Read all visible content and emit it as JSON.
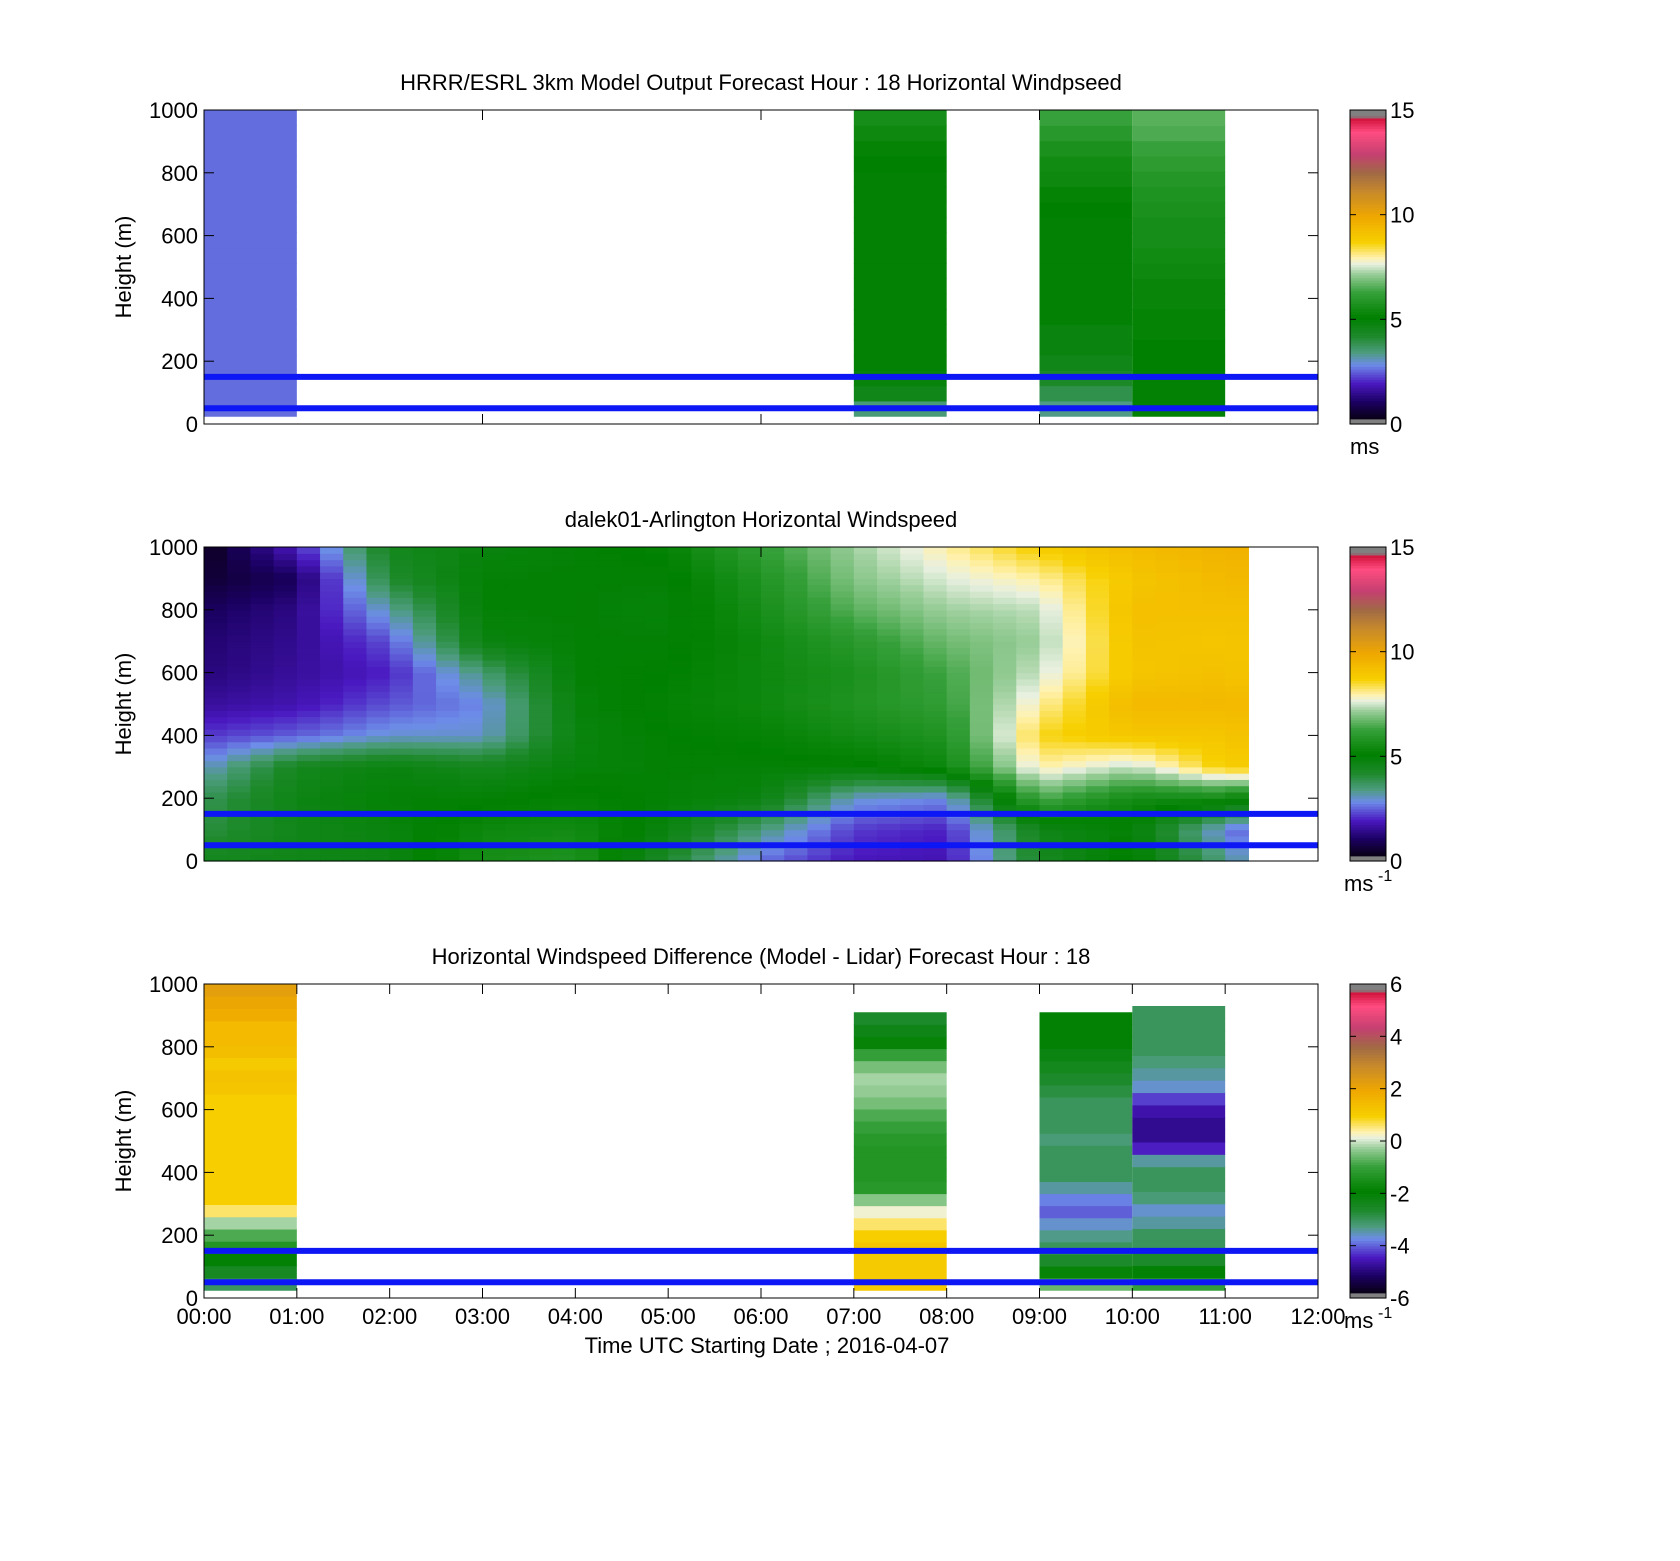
{
  "chart_data": [
    {
      "type": "heatmap",
      "title": "HRRR/ESRL 3km Model Output   Forecast Hour : 18 Horizontal Windpseed",
      "ylabel": "Height (m)",
      "xlabel": "",
      "yticks": [
        "0",
        "200",
        "400",
        "600",
        "800",
        "1000"
      ],
      "ylim": [
        0,
        1000
      ],
      "xlim_hours": [
        0,
        12
      ],
      "colorbar": {
        "ticks": [
          "0",
          "5",
          "10",
          "15"
        ],
        "range": [
          0,
          15
        ],
        "unit": "ms"
      },
      "reference_lines_m": [
        150,
        50
      ],
      "columns": [
        {
          "start_h": 0,
          "end_h": 1,
          "bottom": 25,
          "top": 1000,
          "profile": [
            2.6,
            2.6,
            2.6,
            2.6,
            2.6,
            2.6,
            2.6,
            2.6,
            2.6,
            2.6,
            2.6,
            2.6,
            2.6,
            2.6,
            2.6,
            2.6,
            2.6,
            2.6,
            2.6,
            2.6
          ]
        },
        {
          "start_h": 7,
          "end_h": 8,
          "bottom": 25,
          "top": 1000,
          "profile": [
            3.5,
            4.6,
            4.9,
            5.0,
            5.0,
            5.0,
            5.0,
            5.0,
            5.0,
            5.0,
            5.0,
            5.0,
            5.0,
            5.0,
            5.0,
            5.0,
            5.1,
            5.2,
            5.4,
            5.6
          ]
        },
        {
          "start_h": 9,
          "end_h": 10,
          "bottom": 25,
          "top": 1000,
          "profile": [
            3.4,
            3.9,
            4.3,
            4.6,
            4.8,
            4.8,
            5.0,
            5.0,
            5.0,
            5.0,
            5.0,
            5.0,
            5.0,
            5.1,
            5.2,
            5.4,
            5.5,
            5.7,
            6.0,
            6.3
          ]
        },
        {
          "start_h": 10,
          "end_h": 11,
          "bottom": 25,
          "top": 1000,
          "profile": [
            5.0,
            5.0,
            5.0,
            5.1,
            5.1,
            5.2,
            5.2,
            5.3,
            5.3,
            5.4,
            5.5,
            5.6,
            5.6,
            5.7,
            5.8,
            5.9,
            6.1,
            6.3,
            6.5,
            6.6
          ]
        }
      ]
    },
    {
      "type": "heatmap",
      "title": "dalek01-Arlington  Horizontal Windspeed",
      "ylabel": "Height (m)",
      "xlabel": "",
      "yticks": [
        "0",
        "200",
        "400",
        "600",
        "800",
        "1000"
      ],
      "ylim": [
        0,
        1000
      ],
      "xlim_hours": [
        0,
        12
      ],
      "colorbar": {
        "ticks": [
          "0",
          "5",
          "10",
          "15"
        ],
        "range": [
          0,
          15
        ],
        "unit": "ms",
        "unit_exp": "-1"
      },
      "reference_lines_m": [
        150,
        50
      ],
      "grid": {
        "time_start_h": 0,
        "time_end_h": 11.25,
        "time_step_h": 0.25,
        "height_levels_m": [
          0,
          100,
          200,
          300,
          400,
          500,
          600,
          700,
          800,
          900,
          1000
        ],
        "note_values": "windspeed in m/s interpolated between listed levels",
        "anchor_times_h": [
          0,
          1,
          2,
          3,
          4,
          5,
          6,
          7,
          8,
          9,
          10,
          11,
          11.25
        ],
        "anchor_profiles": [
          [
            4.5,
            4.0,
            3.8,
            3.0,
            2.2,
            1.6,
            1.3,
            1.2,
            1.0,
            0.6,
            0.3
          ],
          [
            4.6,
            4.6,
            4.7,
            4.5,
            2.5,
            1.8,
            1.6,
            1.5,
            1.4,
            1.0,
            2.0
          ],
          [
            4.7,
            4.8,
            5.0,
            4.8,
            3.0,
            2.4,
            2.0,
            2.4,
            3.2,
            4.2,
            4.5
          ],
          [
            5.6,
            5.4,
            5.0,
            4.5,
            3.0,
            2.8,
            3.5,
            4.8,
            5.0,
            5.0,
            4.8
          ],
          [
            5.8,
            5.5,
            5.2,
            4.9,
            4.8,
            4.9,
            5.0,
            5.0,
            5.0,
            5.0,
            5.0
          ],
          [
            4.2,
            4.8,
            5.0,
            5.0,
            5.1,
            5.2,
            5.1,
            5.0,
            4.9,
            5.0,
            5.2
          ],
          [
            2.6,
            3.5,
            4.8,
            5.0,
            5.2,
            5.4,
            5.4,
            5.4,
            5.6,
            5.8,
            6.2
          ],
          [
            1.9,
            2.2,
            3.0,
            5.0,
            5.5,
            5.8,
            5.7,
            6.0,
            6.6,
            7.0,
            7.2
          ],
          [
            1.8,
            2.0,
            2.8,
            5.4,
            5.8,
            6.2,
            6.4,
            6.8,
            7.2,
            7.6,
            8.0
          ],
          [
            4.4,
            4.6,
            6.5,
            8.0,
            8.6,
            8.0,
            7.5,
            7.2,
            7.4,
            8.0,
            8.8
          ],
          [
            5.2,
            5.0,
            5.5,
            7.4,
            9.0,
            9.4,
            9.0,
            9.1,
            9.2,
            9.0,
            9.3
          ],
          [
            3.4,
            2.8,
            5.5,
            8.8,
            9.0,
            9.4,
            9.2,
            9.0,
            9.2,
            9.4,
            9.6
          ],
          [
            3.0,
            2.4,
            5.0,
            8.8,
            9.2,
            9.4,
            9.0,
            9.1,
            9.2,
            9.4,
            9.6
          ]
        ]
      }
    },
    {
      "type": "heatmap",
      "title": "Horizontal Windspeed Difference (Model - Lidar) Forecast Hour : 18",
      "ylabel": "Height (m)",
      "xlabel": "Time UTC  Starting Date ; 2016-04-07",
      "xticks": [
        "00:00",
        "01:00",
        "02:00",
        "03:00",
        "04:00",
        "05:00",
        "06:00",
        "07:00",
        "08:00",
        "09:00",
        "10:00",
        "11:00",
        "12:00"
      ],
      "yticks": [
        "0",
        "200",
        "400",
        "600",
        "800",
        "1000"
      ],
      "ylim": [
        0,
        1000
      ],
      "xlim_hours": [
        0,
        12
      ],
      "colorbar": {
        "ticks": [
          "-6",
          "-4",
          "-2",
          "0",
          "2",
          "4",
          "6"
        ],
        "range": [
          -6,
          6
        ],
        "unit": "ms",
        "unit_exp": "-1"
      },
      "reference_lines_m": [
        150,
        50
      ],
      "columns": [
        {
          "start_h": 0,
          "end_h": 1,
          "bottom": 25,
          "top": 1000,
          "profile": [
            -3.0,
            -2.5,
            -2.0,
            -1.3,
            -0.8,
            -0.2,
            0.6,
            1.0,
            1.0,
            1.0,
            1.0,
            1.0,
            1.0,
            1.0,
            1.0,
            1.0,
            1.2,
            1.3,
            1.1,
            1.4,
            1.5,
            1.5,
            1.8,
            2.0,
            2.2
          ]
        },
        {
          "start_h": 7,
          "end_h": 8,
          "bottom": 25,
          "top": 910,
          "profile": [
            1.1,
            1.1,
            1.1,
            1.2,
            1.0,
            0.6,
            0.2,
            -0.4,
            -1.2,
            -1.3,
            -1.3,
            -1.3,
            -1.2,
            -1.0,
            -0.8,
            -0.5,
            -0.3,
            -0.2,
            -0.5,
            -1.0,
            -1.8,
            -2.3,
            -2.6
          ]
        },
        {
          "start_h": 9,
          "end_h": 10,
          "bottom": 25,
          "top": 910,
          "profile": [
            -0.6,
            -1.8,
            -2.6,
            -3.0,
            -3.3,
            -3.6,
            -4.0,
            -3.8,
            -3.4,
            -3.0,
            -3.0,
            -3.0,
            -3.2,
            -3.0,
            -3.0,
            -3.0,
            -2.8,
            -2.6,
            -2.4,
            -2.2,
            -2.0,
            -2.0,
            -2.0
          ]
        },
        {
          "start_h": 10,
          "end_h": 11,
          "bottom": 25,
          "top": 930,
          "profile": [
            -1.0,
            -2.0,
            -2.6,
            -3.0,
            -3.0,
            -3.4,
            -3.6,
            -3.2,
            -3.0,
            -3.0,
            -3.4,
            -4.4,
            -4.8,
            -4.8,
            -4.6,
            -4.2,
            -3.6,
            -3.4,
            -3.2,
            -3.0,
            -3.0,
            -3.0,
            -3.0
          ]
        }
      ]
    }
  ],
  "colors": {
    "reference_line": "#0d16f5"
  }
}
